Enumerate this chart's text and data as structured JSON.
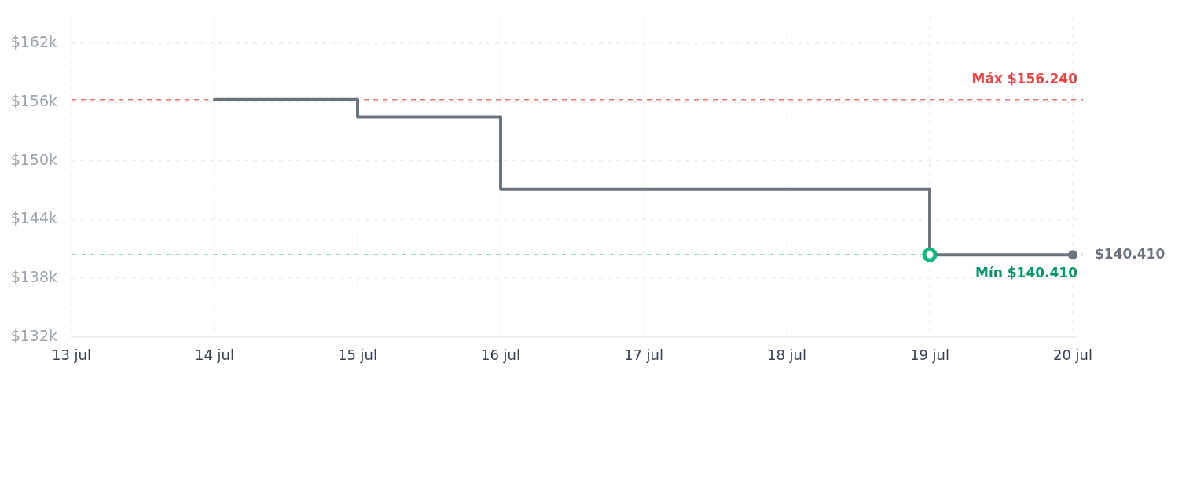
{
  "chart_data": {
    "type": "step",
    "x": [
      "--07-14",
      "--07-15",
      "--07-16",
      "--07-19",
      "--07-20"
    ],
    "series": [
      {
        "color": "#6b7280",
        "values": [
          156240,
          154500,
          147100,
          140410,
          140410
        ]
      },
      {
        "type": "line",
        "color": "#6b7280",
        "x": [
          "--07-20"
        ],
        "values": [
          140410
        ],
        "marker": "circle",
        "value_labels": [
          "$140.410"
        ]
      },
      {
        "type": "scatter",
        "color": "#10b981",
        "x": [
          "--07-19"
        ],
        "values": [
          140410
        ],
        "marker": "circle"
      }
    ],
    "xlim": [
      "--07-13",
      "--07-20"
    ],
    "xticks": [
      {
        "value": "--07-13",
        "label": "13 jul"
      },
      {
        "value": "--07-14",
        "label": "14 jul"
      },
      {
        "value": "--07-15",
        "label": "15 jul"
      },
      {
        "value": "--07-16",
        "label": "16 jul"
      },
      {
        "value": "--07-17",
        "label": "17 jul"
      },
      {
        "value": "--07-18",
        "label": "18 jul"
      },
      {
        "value": "--07-19",
        "label": "19 jul"
      },
      {
        "value": "--07-20",
        "label": "20 jul"
      }
    ],
    "ylim": [
      132000,
      164700
    ],
    "yticks": [
      {
        "value": 132000,
        "label": "$132k"
      },
      {
        "value": 138000,
        "label": "$138k"
      },
      {
        "value": 144000,
        "label": "$144k"
      },
      {
        "value": 150000,
        "label": "$150k"
      },
      {
        "value": 156000,
        "label": "$156k"
      },
      {
        "value": 162000,
        "label": "$162k"
      }
    ],
    "grid": true,
    "ref_lines": [
      {
        "axis": "y",
        "value": 156240,
        "label": "Máx $156.240",
        "color": "#ef4444",
        "line_style": "dashed"
      },
      {
        "axis": "y",
        "value": 140410,
        "label": "Mín $140.410",
        "color": "#059669",
        "line_style": "dashed"
      }
    ]
  }
}
